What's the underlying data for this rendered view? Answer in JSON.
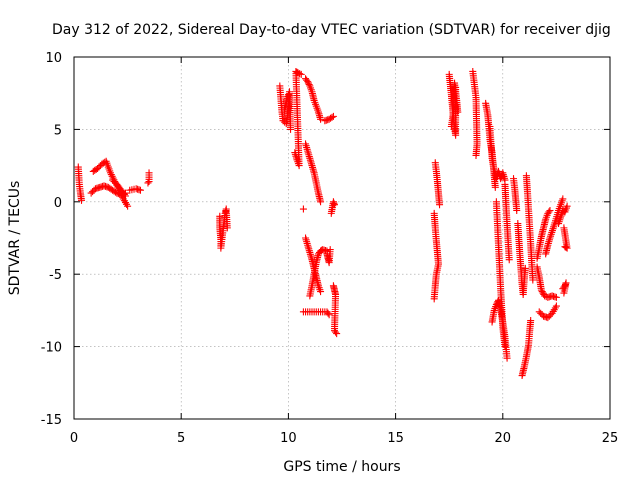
{
  "chart_data": {
    "type": "scatter",
    "title": "Day 312 of 2022, Sidereal Day-to-day VTEC variation (SDTVAR) for receiver djig",
    "xlabel": "GPS time / hours",
    "ylabel": "SDTVAR / TECUs",
    "xlim": [
      0,
      25
    ],
    "ylim": [
      -15,
      10
    ],
    "xticks": [
      0,
      5,
      10,
      15,
      20,
      25
    ],
    "yticks": [
      -15,
      -10,
      -5,
      0,
      5,
      10
    ],
    "xtick_labels": [
      "0",
      "5",
      "10",
      "15",
      "20",
      "25"
    ],
    "ytick_labels": [
      "-15",
      "-10",
      "-5",
      "0",
      "5",
      "10"
    ],
    "grid": true,
    "marker": "plus",
    "color": "#ff0000",
    "series": [
      {
        "name": "SDTVAR",
        "segments": [
          [
            [
              0.2,
              2.4
            ],
            [
              0.25,
              1.2
            ],
            [
              0.3,
              0.6
            ],
            [
              0.35,
              0.1
            ]
          ],
          [
            [
              0.8,
              0.6
            ],
            [
              1.0,
              0.9
            ],
            [
              1.2,
              1.0
            ],
            [
              1.4,
              1.1
            ],
            [
              1.6,
              1.0
            ],
            [
              1.8,
              0.8
            ],
            [
              2.0,
              0.6
            ],
            [
              2.2,
              0.5
            ],
            [
              2.4,
              0.6
            ]
          ],
          [
            [
              0.9,
              2.1
            ],
            [
              1.1,
              2.3
            ],
            [
              1.3,
              2.6
            ],
            [
              1.5,
              2.8
            ],
            [
              1.7,
              2.0
            ],
            [
              1.9,
              1.4
            ],
            [
              2.1,
              0.9
            ],
            [
              2.3,
              0.2
            ],
            [
              2.5,
              -0.3
            ]
          ],
          [
            [
              1.8,
              1.5
            ],
            [
              2.0,
              1.2
            ],
            [
              2.2,
              0.8
            ],
            [
              2.4,
              0.4
            ]
          ],
          [
            [
              2.6,
              0.8
            ],
            [
              2.9,
              0.9
            ],
            [
              3.1,
              0.8
            ]
          ],
          [
            [
              3.5,
              2.0
            ],
            [
              3.5,
              1.4
            ],
            [
              3.45,
              1.3
            ]
          ],
          [
            [
              6.8,
              -1.0
            ],
            [
              6.8,
              -1.8
            ],
            [
              6.85,
              -2.6
            ],
            [
              6.85,
              -3.2
            ],
            [
              7.05,
              -0.8
            ],
            [
              7.1,
              -0.5
            ],
            [
              7.15,
              -1.8
            ]
          ],
          [
            [
              9.6,
              8.0
            ],
            [
              9.65,
              7.1
            ],
            [
              9.7,
              6.2
            ],
            [
              9.75,
              5.6
            ],
            [
              9.9,
              5.4
            ],
            [
              10.0,
              6.5
            ],
            [
              10.05,
              7.6
            ],
            [
              10.1,
              5.0
            ]
          ],
          [
            [
              9.8,
              6.2
            ],
            [
              9.9,
              6.9
            ],
            [
              10.0,
              7.4
            ]
          ],
          [
            [
              10.3,
              3.4
            ],
            [
              10.4,
              2.9
            ],
            [
              10.5,
              2.5
            ],
            [
              10.35,
              9.0
            ],
            [
              10.45,
              8.9
            ],
            [
              10.6,
              8.8
            ]
          ],
          [
            [
              10.8,
              8.5
            ],
            [
              10.9,
              8.3
            ],
            [
              11.0,
              8.0
            ],
            [
              11.1,
              7.6
            ],
            [
              11.2,
              7.0
            ],
            [
              11.3,
              6.6
            ],
            [
              11.4,
              6.2
            ],
            [
              11.5,
              5.7
            ]
          ],
          [
            [
              11.7,
              5.6
            ],
            [
              11.9,
              5.7
            ],
            [
              12.1,
              5.9
            ]
          ],
          [
            [
              10.8,
              4.0
            ],
            [
              10.9,
              3.5
            ],
            [
              11.0,
              3.0
            ],
            [
              11.1,
              2.5
            ],
            [
              11.2,
              2.0
            ],
            [
              11.3,
              1.3
            ],
            [
              11.4,
              0.6
            ],
            [
              11.5,
              0.0
            ]
          ],
          [
            [
              10.7,
              -0.5
            ]
          ],
          [
            [
              12.0,
              -0.8
            ],
            [
              12.05,
              -0.4
            ],
            [
              12.1,
              0.0
            ],
            [
              12.15,
              -0.2
            ]
          ],
          [
            [
              10.8,
              -2.5
            ],
            [
              10.9,
              -3.0
            ],
            [
              11.0,
              -3.5
            ],
            [
              11.1,
              -4.0
            ],
            [
              11.2,
              -4.6
            ],
            [
              11.3,
              -5.2
            ],
            [
              11.4,
              -5.8
            ],
            [
              11.5,
              -6.2
            ]
          ],
          [
            [
              11.0,
              -6.5
            ],
            [
              11.1,
              -5.8
            ],
            [
              11.2,
              -5.0
            ],
            [
              11.3,
              -4.2
            ],
            [
              11.4,
              -3.6
            ],
            [
              11.5,
              -3.4
            ],
            [
              11.6,
              -3.3
            ],
            [
              11.8,
              -3.4
            ]
          ],
          [
            [
              11.8,
              -3.6
            ],
            [
              11.85,
              -3.9
            ],
            [
              11.9,
              -4.2
            ],
            [
              11.95,
              -3.3
            ]
          ],
          [
            [
              10.7,
              -7.6
            ],
            [
              11.8,
              -7.6
            ],
            [
              11.9,
              -7.8
            ]
          ],
          [
            [
              12.1,
              -5.8
            ],
            [
              12.15,
              -6.1
            ],
            [
              12.2,
              -6.4
            ],
            [
              12.15,
              -8.9
            ],
            [
              12.25,
              -9.1
            ]
          ],
          [
            [
              16.8,
              -0.8
            ],
            [
              16.85,
              -1.8
            ],
            [
              16.9,
              -2.7
            ],
            [
              16.95,
              -3.5
            ],
            [
              17.0,
              -4.3
            ],
            [
              16.9,
              -5.0
            ],
            [
              16.85,
              -5.8
            ],
            [
              16.8,
              -6.7
            ]
          ],
          [
            [
              16.85,
              2.7
            ],
            [
              16.9,
              2.1
            ],
            [
              16.95,
              1.4
            ],
            [
              17.0,
              0.6
            ],
            [
              17.05,
              -0.2
            ]
          ],
          [
            [
              17.5,
              8.8
            ],
            [
              17.55,
              8.1
            ],
            [
              17.6,
              7.4
            ],
            [
              17.65,
              6.6
            ],
            [
              17.7,
              5.8
            ],
            [
              17.75,
              5.1
            ],
            [
              17.8,
              4.6
            ],
            [
              17.8,
              7.9
            ]
          ],
          [
            [
              17.6,
              5.2
            ],
            [
              17.7,
              6.2
            ],
            [
              17.75,
              8.2
            ],
            [
              17.85,
              7.0
            ],
            [
              17.9,
              6.2
            ]
          ],
          [
            [
              18.6,
              9.0
            ],
            [
              18.65,
              8.4
            ],
            [
              18.7,
              7.8
            ],
            [
              18.75,
              7.2
            ],
            [
              18.8,
              4.0
            ],
            [
              18.75,
              3.2
            ]
          ],
          [
            [
              19.2,
              6.8
            ],
            [
              19.3,
              6.0
            ],
            [
              19.35,
              5.2
            ],
            [
              19.4,
              4.3
            ],
            [
              19.5,
              3.4
            ],
            [
              19.55,
              2.6
            ],
            [
              19.6,
              1.8
            ],
            [
              19.65,
              1.0
            ]
          ],
          [
            [
              19.4,
              5.2
            ],
            [
              19.5,
              3.0
            ],
            [
              19.6,
              2.2
            ],
            [
              19.7,
              1.6
            ],
            [
              19.8,
              2.1
            ],
            [
              19.9,
              1.6
            ],
            [
              20.0,
              2.0
            ],
            [
              20.1,
              1.5
            ]
          ],
          [
            [
              19.7,
              0.0
            ],
            [
              19.75,
              -1.5
            ],
            [
              19.8,
              -3.0
            ],
            [
              19.85,
              -4.5
            ],
            [
              19.9,
              -6.0
            ],
            [
              19.95,
              -7.3
            ],
            [
              20.0,
              -8.7
            ],
            [
              20.1,
              -10.0
            ]
          ],
          [
            [
              19.5,
              -8.3
            ],
            [
              19.6,
              -7.5
            ],
            [
              19.7,
              -7.1
            ],
            [
              19.8,
              -6.8
            ],
            [
              19.9,
              -7.4
            ],
            [
              20.0,
              -8.3
            ],
            [
              20.1,
              -9.3
            ],
            [
              20.2,
              -10.8
            ]
          ],
          [
            [
              20.1,
              1.2
            ],
            [
              20.15,
              -0.2
            ],
            [
              20.2,
              -1.5
            ],
            [
              20.25,
              -2.8
            ],
            [
              20.3,
              -4.0
            ]
          ],
          [
            [
              20.5,
              1.6
            ],
            [
              20.55,
              1.0
            ],
            [
              20.6,
              0.2
            ],
            [
              20.65,
              -0.6
            ]
          ],
          [
            [
              20.7,
              -1.5
            ],
            [
              20.75,
              -2.6
            ],
            [
              20.8,
              -3.7
            ],
            [
              20.85,
              -4.7
            ],
            [
              20.9,
              -5.7
            ],
            [
              20.95,
              -6.4
            ],
            [
              21.0,
              -5.4
            ],
            [
              21.05,
              -4.6
            ]
          ],
          [
            [
              20.9,
              -12.0
            ],
            [
              21.0,
              -11.4
            ],
            [
              21.1,
              -10.7
            ],
            [
              21.2,
              -9.9
            ],
            [
              21.25,
              -9.0
            ],
            [
              21.3,
              -8.2
            ]
          ],
          [
            [
              21.1,
              1.8
            ],
            [
              21.15,
              0.7
            ],
            [
              21.2,
              -0.5
            ],
            [
              21.25,
              -1.7
            ],
            [
              21.3,
              -2.9
            ],
            [
              21.35,
              -4.2
            ],
            [
              21.4,
              -5.4
            ]
          ],
          [
            [
              21.6,
              -3.9
            ],
            [
              21.7,
              -3.2
            ],
            [
              21.8,
              -2.4
            ],
            [
              21.9,
              -1.8
            ],
            [
              22.0,
              -1.2
            ],
            [
              22.1,
              -0.8
            ],
            [
              22.2,
              -0.6
            ]
          ],
          [
            [
              21.6,
              -4.5
            ],
            [
              21.7,
              -5.2
            ],
            [
              21.8,
              -6.1
            ],
            [
              21.95,
              -6.5
            ],
            [
              22.1,
              -6.6
            ],
            [
              22.3,
              -6.5
            ],
            [
              22.5,
              -6.6
            ]
          ],
          [
            [
              21.7,
              -7.6
            ],
            [
              21.9,
              -7.9
            ],
            [
              22.1,
              -8.0
            ],
            [
              22.3,
              -7.7
            ],
            [
              22.5,
              -7.2
            ]
          ],
          [
            [
              22.0,
              -3.6
            ],
            [
              22.1,
              -3.0
            ],
            [
              22.2,
              -2.5
            ],
            [
              22.4,
              -1.6
            ],
            [
              22.6,
              -0.6
            ],
            [
              22.8,
              0.2
            ]
          ],
          [
            [
              22.6,
              -1.5
            ],
            [
              22.8,
              -0.6
            ],
            [
              22.9,
              -0.7
            ],
            [
              23.0,
              -0.3
            ]
          ],
          [
            [
              22.9,
              -3.1
            ],
            [
              23.0,
              -3.2
            ],
            [
              22.85,
              -1.8
            ]
          ],
          [
            [
              22.8,
              -6.0
            ],
            [
              22.9,
              -5.8
            ],
            [
              22.95,
              -5.6
            ],
            [
              22.85,
              -6.3
            ]
          ]
        ]
      }
    ]
  }
}
